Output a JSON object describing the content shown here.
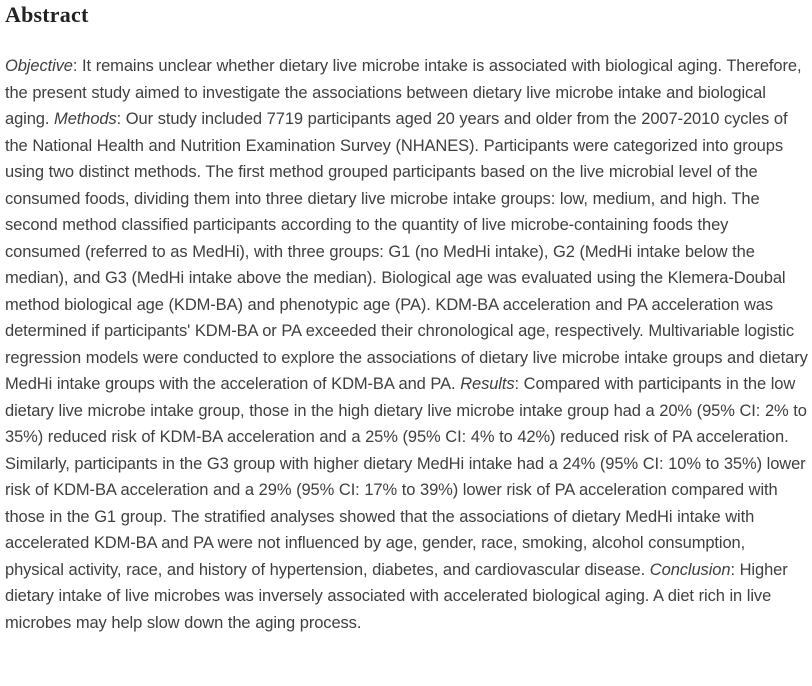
{
  "colors": {
    "background": "#ffffff",
    "heading_text": "#222222",
    "body_text": "#3f3f3f"
  },
  "abstract": {
    "heading": "Abstract",
    "segments": [
      {
        "style": "italic",
        "text": "Objective"
      },
      {
        "style": "normal",
        "text": ": It remains unclear whether dietary live microbe intake is associated with biological aging. Therefore, the present study aimed to investigate the associations between dietary live microbe intake and biological aging. "
      },
      {
        "style": "italic",
        "text": "Methods"
      },
      {
        "style": "normal",
        "text": ": Our study included 7719 participants aged 20 years and older from the 2007-2010 cycles of the National Health and Nutrition Examination Survey (NHANES). Participants were categorized into groups using two distinct methods. The first method grouped participants based on the live microbial level of the consumed foods, dividing them into three dietary live microbe intake groups: low, medium, and high. The second method classified participants according to the quantity of live microbe-containing foods they consumed (referred to as MedHi), with three groups: G1 (no MedHi intake), G2 (MedHi intake below the median), and G3 (MedHi intake above the median). Biological age was evaluated using the Klemera-Doubal method biological age (KDM-BA) and phenotypic age (PA). KDM-BA acceleration and PA acceleration was determined if participants' KDM-BA or PA exceeded their chronological age, respectively. Multivariable logistic regression models were conducted to explore the associations of dietary live microbe intake groups and dietary MedHi intake groups with the acceleration of KDM-BA and PA. "
      },
      {
        "style": "italic",
        "text": "Results"
      },
      {
        "style": "normal",
        "text": ": Compared with participants in the low dietary live microbe intake group, those in the high dietary live microbe intake group had a 20% (95% CI: 2% to 35%) reduced risk of KDM-BA acceleration and a 25% (95% CI: 4% to 42%) reduced risk of PA acceleration. Similarly, participants in the G3 group with higher dietary MedHi intake had a 24% (95% CI: 10% to 35%) lower risk of KDM-BA acceleration and a 29% (95% CI: 17% to 39%) lower risk of PA acceleration compared with those in the G1 group. The stratified analyses showed that the associations of dietary MedHi intake with accelerated KDM-BA and PA were not influenced by age, gender, race, smoking, alcohol consumption, physical activity, race, and history of hypertension, diabetes, and cardiovascular disease. "
      },
      {
        "style": "italic",
        "text": "Conclusion"
      },
      {
        "style": "normal",
        "text": ": Higher dietary intake of live microbes was inversely associated with accelerated biological aging. A diet rich in live microbes may help slow down the aging process."
      }
    ]
  }
}
